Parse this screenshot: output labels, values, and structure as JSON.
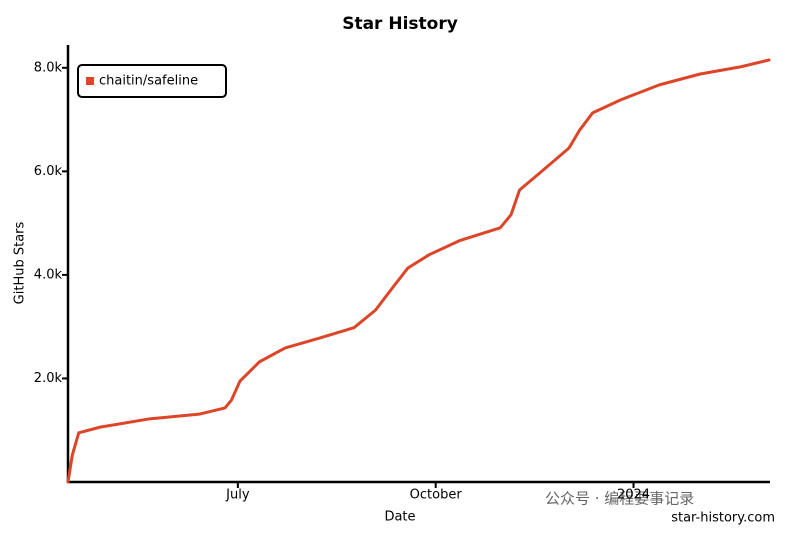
{
  "chart_data": {
    "type": "line",
    "title": "Star History",
    "x_label": "Date",
    "y_label": "GitHub Stars",
    "x": [
      0,
      2,
      5,
      15,
      38,
      61,
      73,
      76,
      80,
      89,
      101,
      117,
      133,
      143,
      152,
      158,
      168,
      182,
      201,
      206,
      210,
      220,
      233,
      238,
      244,
      257,
      275,
      294,
      313,
      326
    ],
    "series": [
      {
        "name": "chaitin/safeline",
        "color": "#dd4528",
        "values": [
          0,
          520,
          950,
          1060,
          1220,
          1310,
          1430,
          1580,
          1950,
          2320,
          2590,
          2780,
          2980,
          3320,
          3810,
          4130,
          4390,
          4660,
          4910,
          5160,
          5640,
          5990,
          6450,
          6800,
          7130,
          7380,
          7670,
          7880,
          8020,
          8150
        ]
      }
    ],
    "xlim": [
      0,
      326
    ],
    "xticks": [
      {
        "value": 79,
        "label": "July"
      },
      {
        "value": 171,
        "label": "October"
      },
      {
        "value": 263,
        "label": "2024"
      }
    ],
    "ylim": [
      0,
      8440
    ],
    "yticks": [
      {
        "value": 2000,
        "label": "2.0k"
      },
      {
        "value": 4000,
        "label": "4.0k"
      },
      {
        "value": 6000,
        "label": "6.0k"
      },
      {
        "value": 8000,
        "label": "8.0k"
      }
    ],
    "legend": "upper-left",
    "watermark": "star-history.com",
    "overlay_watermark": "公众号 · 编程要事记录"
  }
}
